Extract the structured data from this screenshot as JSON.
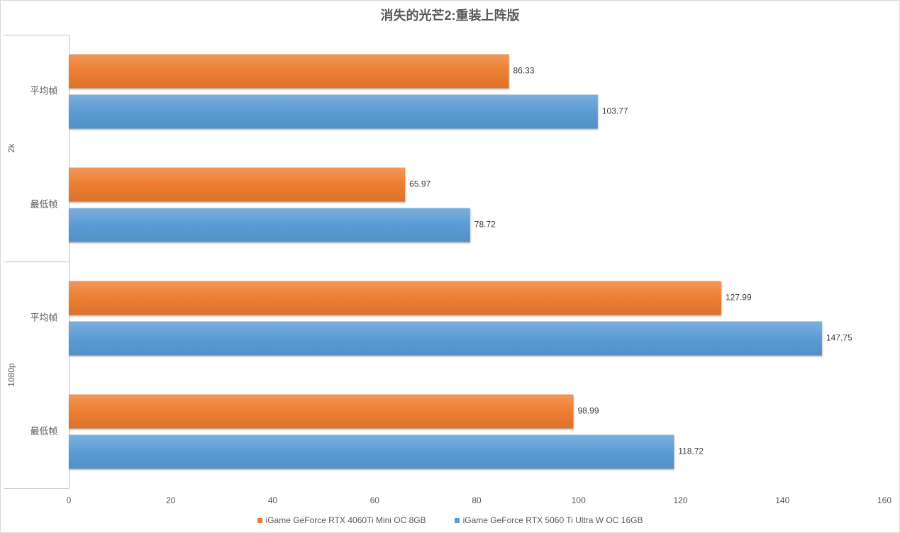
{
  "chart_data": {
    "type": "bar",
    "orientation": "horizontal",
    "title": "消失的光芒2:重装上阵版",
    "categories": [
      {
        "group": "2k",
        "label": "平均帧"
      },
      {
        "group": "2k",
        "label": "最低帧"
      },
      {
        "group": "1080p",
        "label": "平均帧"
      },
      {
        "group": "1080p",
        "label": "最低帧"
      }
    ],
    "series": [
      {
        "name": "iGame GeForce RTX 4060Ti Mini OC 8GB",
        "color": "#ED7D31",
        "values": [
          86.33,
          65.97,
          127.99,
          98.99
        ]
      },
      {
        "name": "iGame GeForce RTX 5060 Ti Ultra W OC 16GB",
        "color": "#5B9BD5",
        "values": [
          103.77,
          78.72,
          147.75,
          118.72
        ]
      }
    ],
    "xlim": [
      0,
      160
    ],
    "xticks": [
      0,
      20,
      40,
      60,
      80,
      100,
      120,
      140,
      160
    ],
    "data_labels": true,
    "grid": false,
    "legend": "bottom"
  }
}
